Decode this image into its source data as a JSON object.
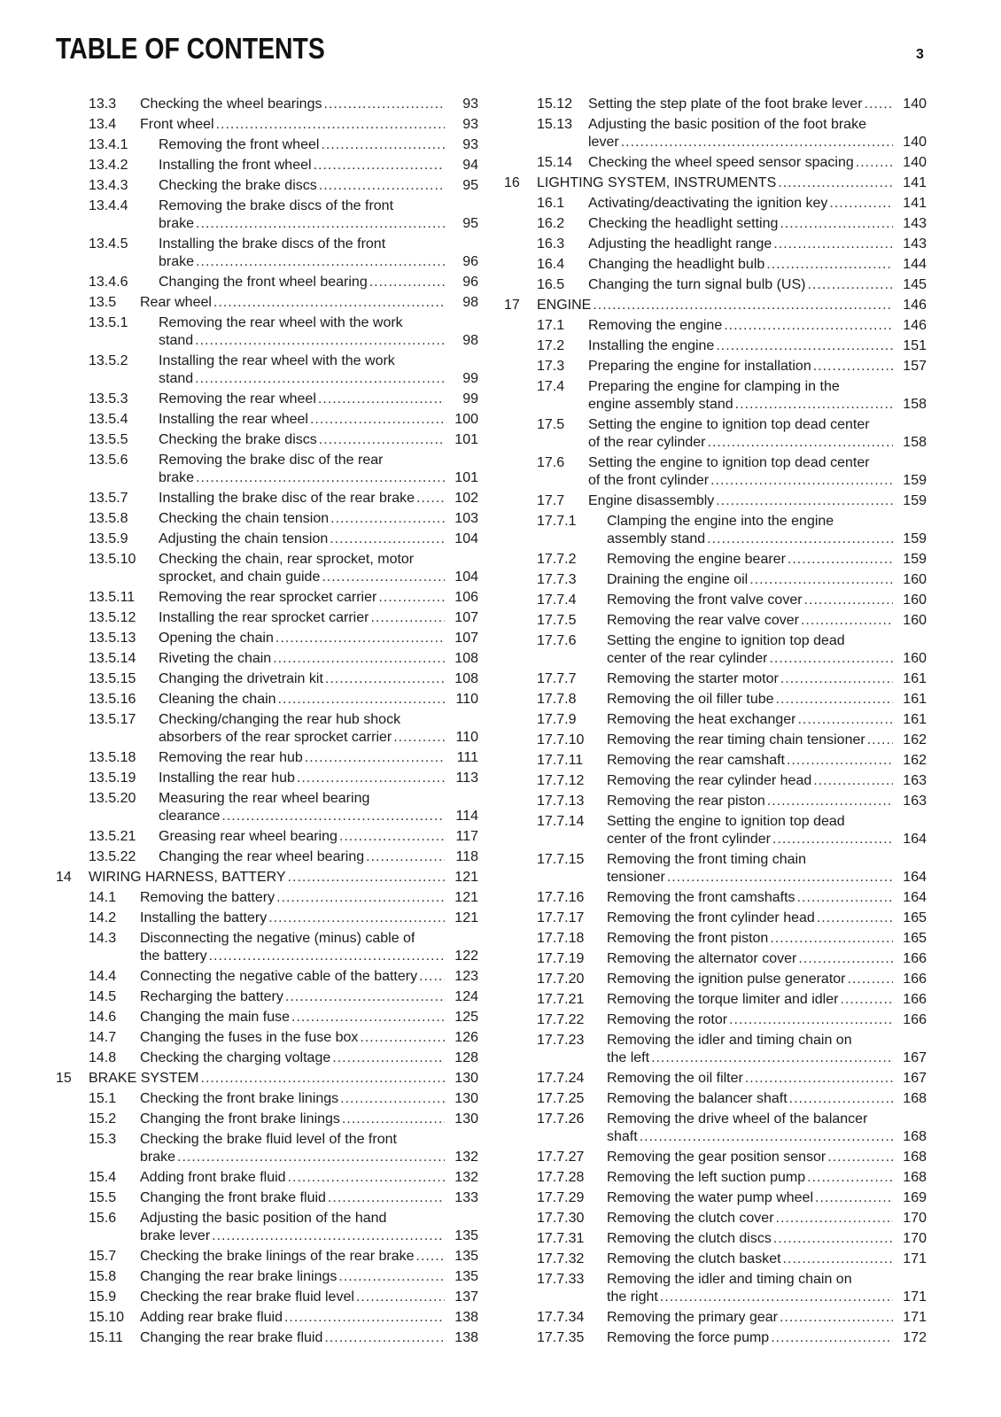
{
  "header": {
    "title": "TABLE OF CONTENTS",
    "page_number": "3"
  },
  "columns": [
    [
      {
        "num": "13.3",
        "level": 2,
        "lines": [
          "Checking the wheel bearings"
        ],
        "page": "93"
      },
      {
        "num": "13.4",
        "level": 2,
        "lines": [
          "Front wheel"
        ],
        "page": "93"
      },
      {
        "num": "13.4.1",
        "level": 3,
        "lines": [
          "Removing the front wheel"
        ],
        "page": "93"
      },
      {
        "num": "13.4.2",
        "level": 3,
        "lines": [
          "Installing the front wheel"
        ],
        "page": "94"
      },
      {
        "num": "13.4.3",
        "level": 3,
        "lines": [
          "Checking the brake discs"
        ],
        "page": "95"
      },
      {
        "num": "13.4.4",
        "level": 3,
        "lines": [
          "Removing the brake discs of the front",
          "brake"
        ],
        "page": "95"
      },
      {
        "num": "13.4.5",
        "level": 3,
        "lines": [
          "Installing the brake discs of the front",
          "brake"
        ],
        "page": "96"
      },
      {
        "num": "13.4.6",
        "level": 3,
        "lines": [
          "Changing the front wheel bearing"
        ],
        "page": "96"
      },
      {
        "num": "13.5",
        "level": 2,
        "lines": [
          "Rear wheel"
        ],
        "page": "98"
      },
      {
        "num": "13.5.1",
        "level": 3,
        "lines": [
          "Removing the rear wheel with the work",
          "stand"
        ],
        "page": "98"
      },
      {
        "num": "13.5.2",
        "level": 3,
        "lines": [
          "Installing the rear wheel with the work",
          "stand"
        ],
        "page": "99"
      },
      {
        "num": "13.5.3",
        "level": 3,
        "lines": [
          "Removing the rear wheel"
        ],
        "page": "99"
      },
      {
        "num": "13.5.4",
        "level": 3,
        "lines": [
          "Installing the rear wheel"
        ],
        "page": "100"
      },
      {
        "num": "13.5.5",
        "level": 3,
        "lines": [
          "Checking the brake discs"
        ],
        "page": "101"
      },
      {
        "num": "13.5.6",
        "level": 3,
        "lines": [
          "Removing the brake disc of the rear",
          "brake"
        ],
        "page": "101"
      },
      {
        "num": "13.5.7",
        "level": 3,
        "lines": [
          "Installing the brake disc of the rear brake"
        ],
        "page": "102"
      },
      {
        "num": "13.5.8",
        "level": 3,
        "lines": [
          "Checking the chain tension"
        ],
        "page": "103"
      },
      {
        "num": "13.5.9",
        "level": 3,
        "lines": [
          "Adjusting the chain tension"
        ],
        "page": "104"
      },
      {
        "num": "13.5.10",
        "level": 3,
        "lines": [
          "Checking the chain, rear sprocket, motor",
          "sprocket, and chain guide"
        ],
        "page": "104"
      },
      {
        "num": "13.5.11",
        "level": 3,
        "lines": [
          "Removing the rear sprocket carrier"
        ],
        "page": "106"
      },
      {
        "num": "13.5.12",
        "level": 3,
        "lines": [
          "Installing the rear sprocket carrier"
        ],
        "page": "107"
      },
      {
        "num": "13.5.13",
        "level": 3,
        "lines": [
          "Opening the chain"
        ],
        "page": "107"
      },
      {
        "num": "13.5.14",
        "level": 3,
        "lines": [
          "Riveting the chain"
        ],
        "page": "108"
      },
      {
        "num": "13.5.15",
        "level": 3,
        "lines": [
          "Changing the drivetrain kit"
        ],
        "page": "108"
      },
      {
        "num": "13.5.16",
        "level": 3,
        "lines": [
          "Cleaning the chain"
        ],
        "page": "110"
      },
      {
        "num": "13.5.17",
        "level": 3,
        "lines": [
          "Checking/changing the rear hub shock",
          "absorbers of the rear sprocket carrier"
        ],
        "page": "110"
      },
      {
        "num": "13.5.18",
        "level": 3,
        "lines": [
          "Removing the rear hub"
        ],
        "page": "111"
      },
      {
        "num": "13.5.19",
        "level": 3,
        "lines": [
          "Installing the rear hub"
        ],
        "page": "113"
      },
      {
        "num": "13.5.20",
        "level": 3,
        "lines": [
          "Measuring the rear wheel bearing",
          "clearance"
        ],
        "page": "114"
      },
      {
        "num": "13.5.21",
        "level": 3,
        "lines": [
          "Greasing rear wheel bearing"
        ],
        "page": "117"
      },
      {
        "num": "13.5.22",
        "level": 3,
        "lines": [
          "Changing the rear wheel bearing"
        ],
        "page": "118"
      },
      {
        "num": "14",
        "level": 1,
        "lines": [
          "WIRING HARNESS, BATTERY"
        ],
        "page": "121"
      },
      {
        "num": "14.1",
        "level": 2,
        "lines": [
          "Removing the battery"
        ],
        "page": "121"
      },
      {
        "num": "14.2",
        "level": 2,
        "lines": [
          "Installing the battery"
        ],
        "page": "121"
      },
      {
        "num": "14.3",
        "level": 2,
        "lines": [
          "Disconnecting the negative (minus) cable of",
          "the battery"
        ],
        "page": "122"
      },
      {
        "num": "14.4",
        "level": 2,
        "lines": [
          "Connecting the negative cable of the battery"
        ],
        "page": "123"
      },
      {
        "num": "14.5",
        "level": 2,
        "lines": [
          "Recharging the battery"
        ],
        "page": "124"
      },
      {
        "num": "14.6",
        "level": 2,
        "lines": [
          "Changing the main fuse"
        ],
        "page": "125"
      },
      {
        "num": "14.7",
        "level": 2,
        "lines": [
          "Changing the fuses in the fuse box"
        ],
        "page": "126"
      },
      {
        "num": "14.8",
        "level": 2,
        "lines": [
          "Checking the charging voltage"
        ],
        "page": "128"
      },
      {
        "num": "15",
        "level": 1,
        "lines": [
          "BRAKE SYSTEM"
        ],
        "page": "130"
      },
      {
        "num": "15.1",
        "level": 2,
        "lines": [
          "Checking the front brake linings"
        ],
        "page": "130"
      },
      {
        "num": "15.2",
        "level": 2,
        "lines": [
          "Changing the front brake linings"
        ],
        "page": "130"
      },
      {
        "num": "15.3",
        "level": 2,
        "lines": [
          "Checking the brake fluid level of the front",
          "brake"
        ],
        "page": "132"
      },
      {
        "num": "15.4",
        "level": 2,
        "lines": [
          "Adding front brake fluid"
        ],
        "page": "132"
      },
      {
        "num": "15.5",
        "level": 2,
        "lines": [
          "Changing the front brake fluid"
        ],
        "page": "133"
      },
      {
        "num": "15.6",
        "level": 2,
        "lines": [
          "Adjusting the basic position of the hand",
          "brake lever"
        ],
        "page": "135"
      },
      {
        "num": "15.7",
        "level": 2,
        "lines": [
          "Checking the brake linings of the rear brake"
        ],
        "page": "135"
      },
      {
        "num": "15.8",
        "level": 2,
        "lines": [
          "Changing the rear brake linings"
        ],
        "page": "135"
      },
      {
        "num": "15.9",
        "level": 2,
        "lines": [
          "Checking the rear brake fluid level"
        ],
        "page": "137"
      },
      {
        "num": "15.10",
        "level": 2,
        "lines": [
          "Adding rear brake fluid"
        ],
        "page": "138"
      },
      {
        "num": "15.11",
        "level": 2,
        "lines": [
          "Changing the rear brake fluid"
        ],
        "page": "138"
      }
    ],
    [
      {
        "num": "15.12",
        "level": 2,
        "lines": [
          "Setting the step plate of the foot brake lever"
        ],
        "page": "140"
      },
      {
        "num": "15.13",
        "level": 2,
        "lines": [
          "Adjusting the basic position of the foot brake",
          "lever"
        ],
        "page": "140"
      },
      {
        "num": "15.14",
        "level": 2,
        "lines": [
          "Checking the wheel speed sensor spacing"
        ],
        "page": "140"
      },
      {
        "num": "16",
        "level": 1,
        "lines": [
          "LIGHTING SYSTEM, INSTRUMENTS"
        ],
        "page": "141"
      },
      {
        "num": "16.1",
        "level": 2,
        "lines": [
          "Activating/deactivating the ignition key"
        ],
        "page": "141"
      },
      {
        "num": "16.2",
        "level": 2,
        "lines": [
          "Checking the headlight setting"
        ],
        "page": "143"
      },
      {
        "num": "16.3",
        "level": 2,
        "lines": [
          "Adjusting the headlight range"
        ],
        "page": "143"
      },
      {
        "num": "16.4",
        "level": 2,
        "lines": [
          "Changing the headlight bulb"
        ],
        "page": "144"
      },
      {
        "num": "16.5",
        "level": 2,
        "lines": [
          "Changing the turn signal bulb (US)"
        ],
        "page": "145"
      },
      {
        "num": "17",
        "level": 1,
        "lines": [
          "ENGINE"
        ],
        "page": "146"
      },
      {
        "num": "17.1",
        "level": 2,
        "lines": [
          "Removing the engine"
        ],
        "page": "146"
      },
      {
        "num": "17.2",
        "level": 2,
        "lines": [
          "Installing the engine"
        ],
        "page": "151"
      },
      {
        "num": "17.3",
        "level": 2,
        "lines": [
          "Preparing the engine for installation"
        ],
        "page": "157"
      },
      {
        "num": "17.4",
        "level": 2,
        "lines": [
          "Preparing the engine for clamping in the",
          "engine assembly stand"
        ],
        "page": "158"
      },
      {
        "num": "17.5",
        "level": 2,
        "lines": [
          "Setting the engine to ignition top dead center",
          "of the rear cylinder"
        ],
        "page": "158"
      },
      {
        "num": "17.6",
        "level": 2,
        "lines": [
          "Setting the engine to ignition top dead center",
          "of the front cylinder"
        ],
        "page": "159"
      },
      {
        "num": "17.7",
        "level": 2,
        "lines": [
          "Engine disassembly"
        ],
        "page": "159"
      },
      {
        "num": "17.7.1",
        "level": 3,
        "lines": [
          "Clamping the engine into the engine",
          "assembly stand"
        ],
        "page": "159"
      },
      {
        "num": "17.7.2",
        "level": 3,
        "lines": [
          "Removing the engine bearer"
        ],
        "page": "159"
      },
      {
        "num": "17.7.3",
        "level": 3,
        "lines": [
          "Draining the engine oil"
        ],
        "page": "160"
      },
      {
        "num": "17.7.4",
        "level": 3,
        "lines": [
          "Removing the front valve cover"
        ],
        "page": "160"
      },
      {
        "num": "17.7.5",
        "level": 3,
        "lines": [
          "Removing the rear valve cover"
        ],
        "page": "160"
      },
      {
        "num": "17.7.6",
        "level": 3,
        "lines": [
          "Setting the engine to ignition top dead",
          "center of the rear cylinder"
        ],
        "page": "160"
      },
      {
        "num": "17.7.7",
        "level": 3,
        "lines": [
          "Removing the starter motor"
        ],
        "page": "161"
      },
      {
        "num": "17.7.8",
        "level": 3,
        "lines": [
          "Removing the oil filler tube"
        ],
        "page": "161"
      },
      {
        "num": "17.7.9",
        "level": 3,
        "lines": [
          "Removing the heat exchanger"
        ],
        "page": "161"
      },
      {
        "num": "17.7.10",
        "level": 3,
        "lines": [
          "Removing the rear timing chain tensioner"
        ],
        "page": "162"
      },
      {
        "num": "17.7.11",
        "level": 3,
        "lines": [
          "Removing the rear camshaft"
        ],
        "page": "162"
      },
      {
        "num": "17.7.12",
        "level": 3,
        "lines": [
          "Removing the rear cylinder head"
        ],
        "page": "163"
      },
      {
        "num": "17.7.13",
        "level": 3,
        "lines": [
          "Removing the rear piston"
        ],
        "page": "163"
      },
      {
        "num": "17.7.14",
        "level": 3,
        "lines": [
          "Setting the engine to ignition top dead",
          "center of the front cylinder"
        ],
        "page": "164"
      },
      {
        "num": "17.7.15",
        "level": 3,
        "lines": [
          "Removing the front timing chain",
          "tensioner"
        ],
        "page": "164"
      },
      {
        "num": "17.7.16",
        "level": 3,
        "lines": [
          "Removing the front camshafts"
        ],
        "page": "164"
      },
      {
        "num": "17.7.17",
        "level": 3,
        "lines": [
          "Removing the front cylinder head"
        ],
        "page": "165"
      },
      {
        "num": "17.7.18",
        "level": 3,
        "lines": [
          "Removing the front piston"
        ],
        "page": "165"
      },
      {
        "num": "17.7.19",
        "level": 3,
        "lines": [
          "Removing the alternator cover"
        ],
        "page": "166"
      },
      {
        "num": "17.7.20",
        "level": 3,
        "lines": [
          "Removing the ignition pulse generator"
        ],
        "page": "166"
      },
      {
        "num": "17.7.21",
        "level": 3,
        "lines": [
          "Removing the torque limiter and idler"
        ],
        "page": "166"
      },
      {
        "num": "17.7.22",
        "level": 3,
        "lines": [
          "Removing the rotor"
        ],
        "page": "166"
      },
      {
        "num": "17.7.23",
        "level": 3,
        "lines": [
          "Removing the idler and timing chain on",
          "the left"
        ],
        "page": "167"
      },
      {
        "num": "17.7.24",
        "level": 3,
        "lines": [
          "Removing the oil filter"
        ],
        "page": "167"
      },
      {
        "num": "17.7.25",
        "level": 3,
        "lines": [
          "Removing the balancer shaft"
        ],
        "page": "168"
      },
      {
        "num": "17.7.26",
        "level": 3,
        "lines": [
          "Removing the drive wheel of the balancer",
          "shaft"
        ],
        "page": "168"
      },
      {
        "num": "17.7.27",
        "level": 3,
        "lines": [
          "Removing the gear position sensor"
        ],
        "page": "168"
      },
      {
        "num": "17.7.28",
        "level": 3,
        "lines": [
          "Removing the left suction pump"
        ],
        "page": "168"
      },
      {
        "num": "17.7.29",
        "level": 3,
        "lines": [
          "Removing the water pump wheel"
        ],
        "page": "169"
      },
      {
        "num": "17.7.30",
        "level": 3,
        "lines": [
          "Removing the clutch cover"
        ],
        "page": "170"
      },
      {
        "num": "17.7.31",
        "level": 3,
        "lines": [
          "Removing the clutch discs"
        ],
        "page": "170"
      },
      {
        "num": "17.7.32",
        "level": 3,
        "lines": [
          "Removing the clutch basket"
        ],
        "page": "171"
      },
      {
        "num": "17.7.33",
        "level": 3,
        "lines": [
          "Removing the idler and timing chain on",
          "the right"
        ],
        "page": "171"
      },
      {
        "num": "17.7.34",
        "level": 3,
        "lines": [
          "Removing the primary gear"
        ],
        "page": "171"
      },
      {
        "num": "17.7.35",
        "level": 3,
        "lines": [
          "Removing the force pump"
        ],
        "page": "172"
      }
    ]
  ]
}
